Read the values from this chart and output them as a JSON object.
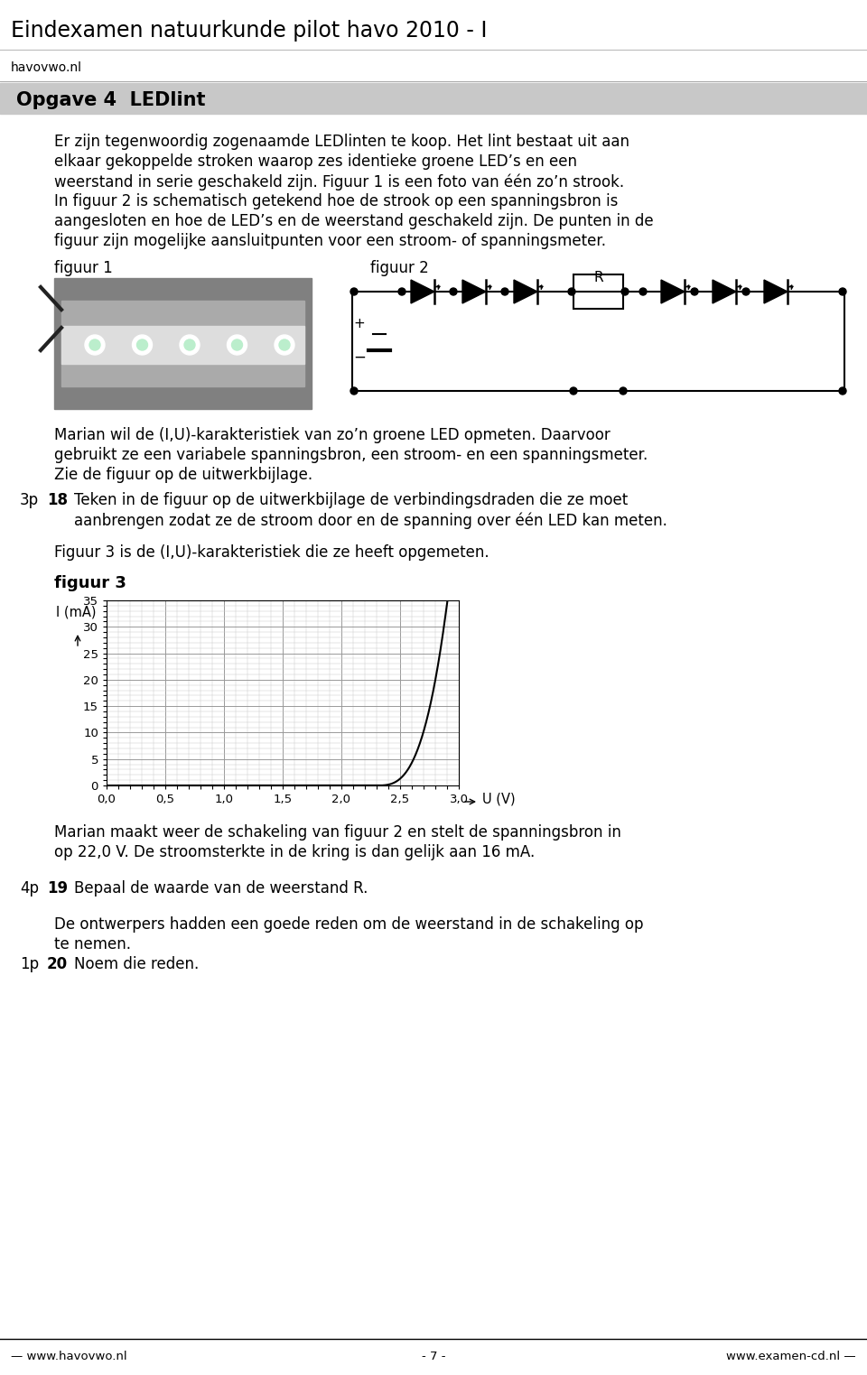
{
  "title": "Eindexamen natuurkunde pilot havo 2010 - I",
  "website": "havovwo.nl",
  "opgave_title": "Opgave 4  LEDlint",
  "para1_lines": [
    "Er zijn tegenwoordig zogenaamde LEDlinten te koop. Het lint bestaat uit aan",
    "elkaar gekoppelde stroken waarop zes identieke groene LED’s en een",
    "weerstand in serie geschakeld zijn. Figuur 1 is een foto van één zo’n strook.",
    "In figuur 2 is schematisch getekend hoe de strook op een spanningsbron is",
    "aangesloten en hoe de LED’s en de weerstand geschakeld zijn. De punten in de",
    "figuur zijn mogelijke aansluitpunten voor een stroom- of spanningsmeter."
  ],
  "figuur1_label": "figuur 1",
  "figuur2_label": "figuur 2",
  "para2_lines": [
    "Marian wil de (I,U)-karakteristiek van zo’n groene LED opmeten. Daarvoor",
    "gebruikt ze een variabele spanningsbron, een stroom- en een spanningsmeter.",
    "Zie de figuur op de uitwerkbijlage."
  ],
  "q18_prefix": "3p",
  "q18_num": "18",
  "q18_lines": [
    "Teken in de figuur op de uitwerkbijlage de verbindingsdraden die ze moet",
    "aanbrengen zodat ze de stroom door en de spanning over één LED kan meten."
  ],
  "para3": "Figuur 3 is de (I,U)-karakteristiek die ze heeft opgemeten.",
  "figuur3_label": "figuur 3",
  "graph_xtick_labels": [
    "0,0",
    "0,5",
    "1,0",
    "1,5",
    "2,0",
    "2,5",
    "3,0"
  ],
  "graph_ytick_labels": [
    "0",
    "5",
    "10",
    "15",
    "20",
    "25",
    "30",
    "35"
  ],
  "graph_ylabel": "I (mA)",
  "graph_xlabel": "U (V)",
  "para4_lines": [
    "Marian maakt weer de schakeling van figuur 2 en stelt de spanningsbron in",
    "op 22,0 V. De stroomsterkte in de kring is dan gelijk aan 16 mA."
  ],
  "q19_prefix": "4p",
  "q19_num": "19",
  "q19_text": "Bepaal de waarde van de weerstand R.",
  "para5_lines": [
    "De ontwerpers hadden een goede reden om de weerstand in de schakeling op",
    "te nemen."
  ],
  "q20_prefix": "1p",
  "q20_num": "20",
  "q20_text": "Noem die reden.",
  "footer_left": "— www.havovwo.nl",
  "footer_center": "- 7 -",
  "footer_right": "www.examen-cd.nl —",
  "bg_color": "#ffffff",
  "text_color": "#000000",
  "opgave_bar_color": "#c8c8c8",
  "grid_major_color": "#999999",
  "grid_minor_color": "#cccccc",
  "curve_color": "#000000"
}
